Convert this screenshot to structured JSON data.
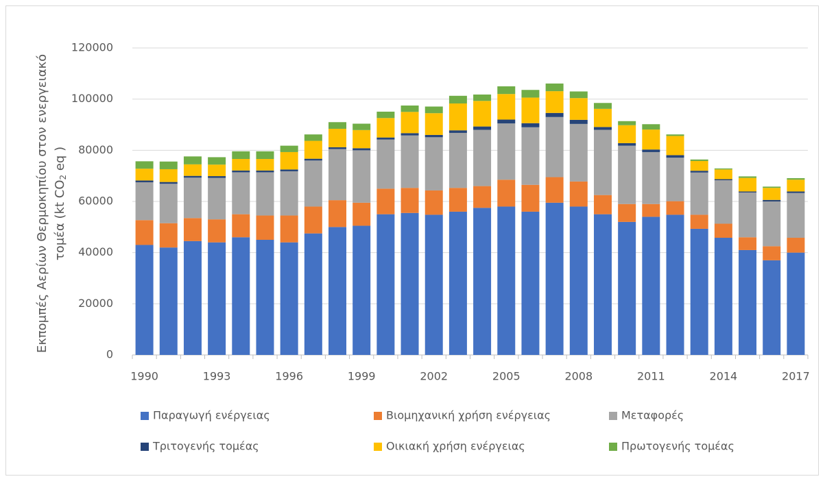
{
  "chart_data": {
    "type": "stacked_bar",
    "y_label": {
      "line1": "Εκπομπές Αερίων Θερμοκηπίου στον ενεργειακό",
      "line2": "τομέα  (kt CO",
      "subscript": "2",
      "line2_end": " eq )"
    },
    "categories": [
      "1990",
      null,
      null,
      "1993",
      null,
      null,
      "1996",
      null,
      null,
      "1999",
      null,
      null,
      "2002",
      null,
      null,
      "2005",
      null,
      null,
      "2008",
      null,
      null,
      "2011",
      null,
      null,
      "2014",
      null,
      null,
      "2017"
    ],
    "ylim": [
      0,
      120000
    ],
    "yticks": [
      0,
      20000,
      40000,
      60000,
      80000,
      100000,
      120000
    ],
    "grid": true,
    "series": [
      {
        "name": "Παραγωγή ενέργειας",
        "color": "#4472c4",
        "values": [
          43000,
          42000,
          44500,
          44000,
          46000,
          45000,
          44000,
          47500,
          50000,
          50500,
          55000,
          55500,
          54800,
          56000,
          57500,
          58000,
          56000,
          59500,
          58000,
          55000,
          52000,
          54000,
          54800,
          49300,
          45800,
          41000,
          37000,
          40000
        ]
      },
      {
        "name": "Βιομηχανική χρήση ενέργειας",
        "color": "#ed7d31",
        "values": [
          9700,
          9500,
          9000,
          9000,
          9000,
          9500,
          10500,
          10500,
          10500,
          9000,
          10000,
          9800,
          9500,
          9300,
          8500,
          10500,
          10500,
          10000,
          9800,
          7500,
          7000,
          5000,
          5300,
          5500,
          5500,
          5000,
          5500,
          5800
        ]
      },
      {
        "name": "Μεταφορές",
        "color": "#a5a5a5",
        "values": [
          14800,
          15400,
          15800,
          16200,
          16400,
          16900,
          17300,
          18000,
          20000,
          20500,
          19200,
          20500,
          20800,
          21500,
          22000,
          22000,
          22500,
          23500,
          22500,
          25500,
          22800,
          20300,
          17000,
          16500,
          17000,
          17500,
          17500,
          17500
        ]
      },
      {
        "name": "Τριτογενής τομέας",
        "color": "#264478",
        "values": [
          700,
          700,
          700,
          700,
          700,
          700,
          700,
          700,
          700,
          800,
          800,
          900,
          900,
          1000,
          1300,
          1500,
          1600,
          1600,
          1600,
          1100,
          1000,
          1000,
          1000,
          700,
          400,
          400,
          600,
          600
        ]
      },
      {
        "name": "Οικιακή χρήση ενέργειας",
        "color": "#ffc000",
        "values": [
          4600,
          5000,
          4500,
          4500,
          4500,
          4500,
          6800,
          7000,
          7200,
          7100,
          7600,
          8300,
          8500,
          10500,
          10000,
          10000,
          10000,
          8500,
          8500,
          7100,
          7000,
          7800,
          7500,
          3800,
          3800,
          5300,
          4700,
          4600
        ]
      },
      {
        "name": "Πρωτογενής τομέας",
        "color": "#70ad47",
        "values": [
          2900,
          3000,
          3100,
          2900,
          3000,
          3000,
          2500,
          2500,
          2600,
          2500,
          2500,
          2500,
          2600,
          3000,
          2500,
          3000,
          3000,
          3000,
          2600,
          2300,
          1600,
          2100,
          600,
          600,
          400,
          600,
          500,
          600
        ]
      }
    ]
  }
}
